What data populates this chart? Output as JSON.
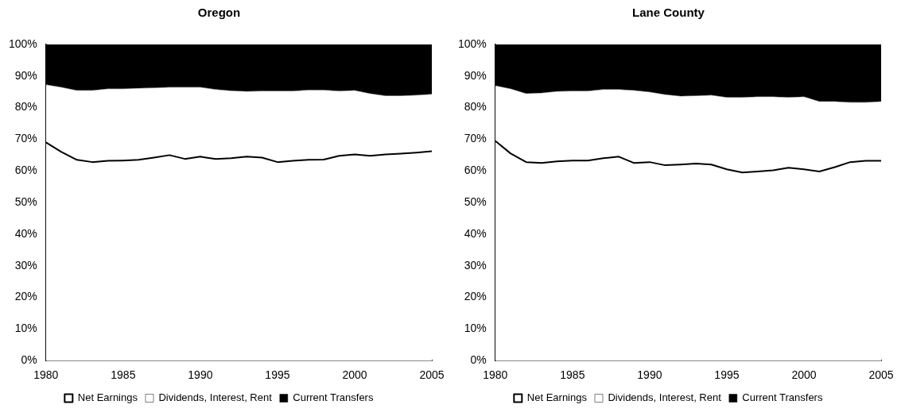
{
  "chart_data": [
    {
      "type": "area",
      "title": "Oregon",
      "stacked": true,
      "x": [
        1980,
        1981,
        1982,
        1983,
        1984,
        1985,
        1986,
        1987,
        1988,
        1989,
        1990,
        1991,
        1992,
        1993,
        1994,
        1995,
        1996,
        1997,
        1998,
        1999,
        2000,
        2001,
        2002,
        2003,
        2004,
        2005
      ],
      "xlim": [
        1980,
        2005
      ],
      "xticks": [
        {
          "value": 1980,
          "label": "1980"
        },
        {
          "value": 1985,
          "label": "1985"
        },
        {
          "value": 1990,
          "label": "1990"
        },
        {
          "value": 1995,
          "label": "1995"
        },
        {
          "value": 2000,
          "label": "2000"
        },
        {
          "value": 2005,
          "label": "2005"
        }
      ],
      "ylim": [
        0,
        100
      ],
      "yticks": [
        {
          "value": 0,
          "label": "0%"
        },
        {
          "value": 10,
          "label": "10%"
        },
        {
          "value": 20,
          "label": "20%"
        },
        {
          "value": 30,
          "label": "30%"
        },
        {
          "value": 40,
          "label": "40%"
        },
        {
          "value": 50,
          "label": "50%"
        },
        {
          "value": 60,
          "label": "60%"
        },
        {
          "value": 70,
          "label": "70%"
        },
        {
          "value": 80,
          "label": "80%"
        },
        {
          "value": 90,
          "label": "90%"
        },
        {
          "value": 100,
          "label": "100%"
        }
      ],
      "grid": false,
      "legend": "bottom",
      "marker": "none",
      "series": [
        {
          "name": "Net Earnings",
          "color": "#ffffff",
          "values": [
            69,
            66,
            63.5,
            62.8,
            63.2,
            63.3,
            63.5,
            64.2,
            65,
            63.8,
            64.5,
            63.8,
            64,
            64.5,
            64.2,
            62.8,
            63.2,
            63.5,
            63.6,
            64.8,
            65.2,
            64.8,
            65.2,
            65.5,
            65.8,
            66.2
          ]
        },
        {
          "name": "Dividends, Interest, Rent",
          "color": "#ffffff",
          "values": [
            18.3,
            20.5,
            22,
            22.7,
            22.8,
            22.7,
            22.7,
            22.1,
            21.5,
            22.7,
            22,
            22,
            21.4,
            20.7,
            21.1,
            22.5,
            22.1,
            22.1,
            22,
            20.5,
            20.3,
            19.7,
            18.6,
            18.3,
            18.2,
            18.1
          ]
        },
        {
          "name": "Current Transfers",
          "color": "#000000",
          "values": [
            12.7,
            13.5,
            14.5,
            14.5,
            14,
            14,
            13.8,
            13.7,
            13.5,
            13.5,
            13.5,
            14.2,
            14.6,
            14.8,
            14.7,
            14.7,
            14.7,
            14.4,
            14.4,
            14.7,
            14.5,
            15.5,
            16.2,
            16.2,
            16,
            15.7
          ]
        }
      ]
    },
    {
      "type": "area",
      "title": "Lane County",
      "stacked": true,
      "x": [
        1980,
        1981,
        1982,
        1983,
        1984,
        1985,
        1986,
        1987,
        1988,
        1989,
        1990,
        1991,
        1992,
        1993,
        1994,
        1995,
        1996,
        1997,
        1998,
        1999,
        2000,
        2001,
        2002,
        2003,
        2004,
        2005
      ],
      "xlim": [
        1980,
        2005
      ],
      "xticks": [
        {
          "value": 1980,
          "label": "1980"
        },
        {
          "value": 1985,
          "label": "1985"
        },
        {
          "value": 1990,
          "label": "1990"
        },
        {
          "value": 1995,
          "label": "1995"
        },
        {
          "value": 2000,
          "label": "2000"
        },
        {
          "value": 2005,
          "label": "2005"
        }
      ],
      "ylim": [
        0,
        100
      ],
      "yticks": [
        {
          "value": 0,
          "label": "0%"
        },
        {
          "value": 10,
          "label": "10%"
        },
        {
          "value": 20,
          "label": "20%"
        },
        {
          "value": 30,
          "label": "30%"
        },
        {
          "value": 40,
          "label": "40%"
        },
        {
          "value": 50,
          "label": "50%"
        },
        {
          "value": 60,
          "label": "60%"
        },
        {
          "value": 70,
          "label": "70%"
        },
        {
          "value": 80,
          "label": "80%"
        },
        {
          "value": 90,
          "label": "90%"
        },
        {
          "value": 100,
          "label": "100%"
        }
      ],
      "grid": false,
      "legend": "bottom",
      "marker": "none",
      "series": [
        {
          "name": "Net Earnings",
          "color": "#ffffff",
          "values": [
            69.5,
            65.5,
            62.8,
            62.5,
            63,
            63.3,
            63.3,
            64,
            64.5,
            62.5,
            62.8,
            61.8,
            62,
            62.3,
            62,
            60.5,
            59.5,
            59.8,
            60.2,
            61,
            60.5,
            59.8,
            61.2,
            62.8,
            63.2,
            63.2
          ]
        },
        {
          "name": "Dividends, Interest, Rent",
          "color": "#ffffff",
          "values": [
            17.5,
            20.5,
            21.7,
            22.2,
            22.2,
            22,
            22,
            21.8,
            21.3,
            23,
            22.2,
            22.4,
            21.7,
            21.5,
            22,
            22.8,
            23.8,
            23.7,
            23.3,
            22.3,
            23,
            22.2,
            20.8,
            18.9,
            18.5,
            18.8
          ]
        },
        {
          "name": "Current Transfers",
          "color": "#000000",
          "values": [
            13,
            14,
            15.5,
            15.3,
            14.8,
            14.7,
            14.7,
            14.2,
            14.2,
            14.5,
            15,
            15.8,
            16.3,
            16.2,
            16,
            16.7,
            16.7,
            16.5,
            16.5,
            16.7,
            16.5,
            18,
            18,
            18.3,
            18.3,
            18
          ]
        }
      ]
    }
  ]
}
